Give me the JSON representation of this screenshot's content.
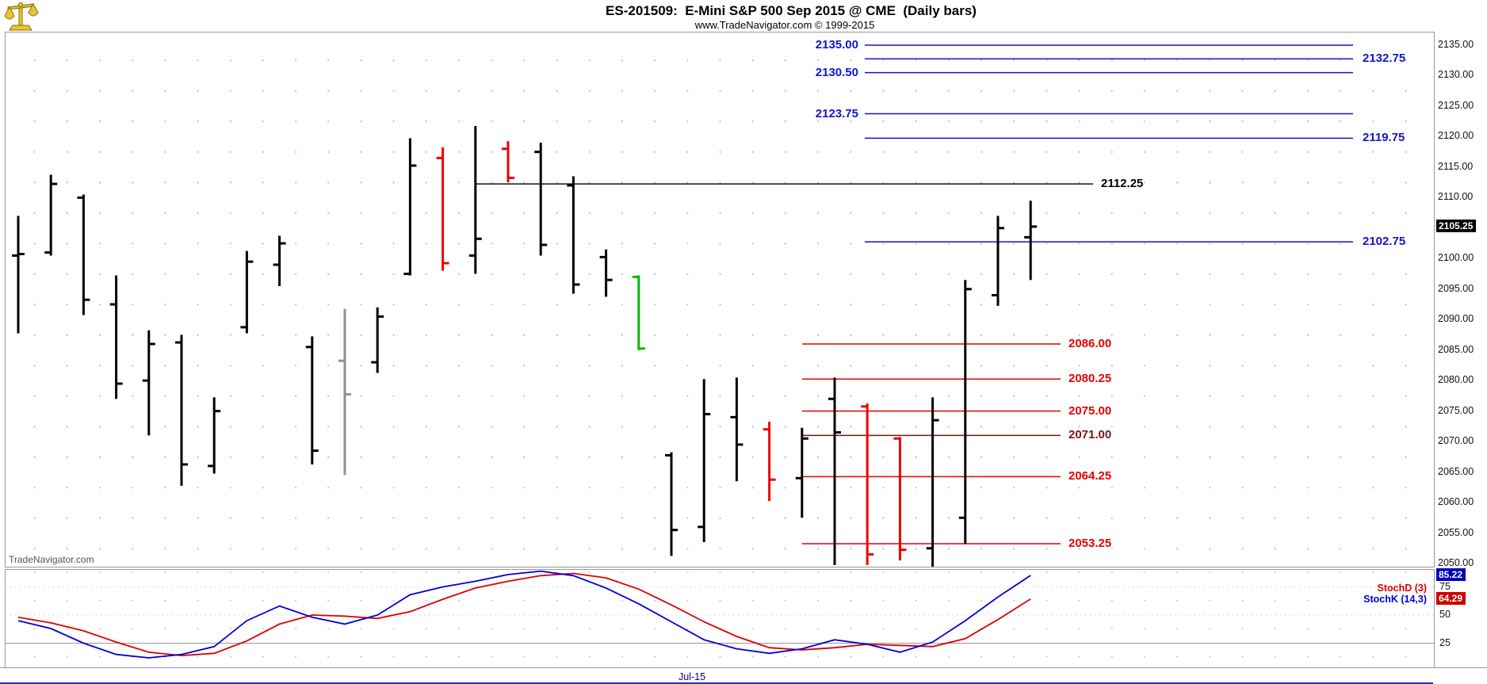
{
  "header": {
    "title": "ES-201509:  E-Mini S&P 500 Sep 2015 @ CME  (Daily bars)",
    "subtitle": "www.TradeNavigator.com © 1999-2015",
    "logo": "trade-navigator-scales-logo"
  },
  "watermark": "TradeNavigator.com",
  "time_axis": {
    "label": "Jul-15"
  },
  "price_axis": {
    "tick_labels": [
      "2135.00",
      "2130.00",
      "2125.00",
      "2120.00",
      "2115.00",
      "2110.00",
      "2100.00",
      "2095.00",
      "2090.00",
      "2085.00",
      "2080.00",
      "2075.00",
      "2070.00",
      "2065.00",
      "2060.00",
      "2055.00",
      "2050.00"
    ],
    "current_price_label": "2105.25",
    "current_price": 2105.25
  },
  "indicator_panel": {
    "stochd_label": "StochD (3)",
    "stochk_label": "StochK (14,3)",
    "tick_labels": [
      "75",
      "50",
      "25"
    ],
    "k_badge": "85.22",
    "d_badge": "64.29"
  },
  "colors": {
    "blue_level": "#1414CC",
    "red_level": "#E60000",
    "dark_red_level": "#7A1414",
    "black_level": "#000000",
    "bar_black": "#000000",
    "bar_red": "#EE0000",
    "bar_green": "#00BB00",
    "bar_gray": "#909090",
    "stoch_k": "#0000DD",
    "stoch_d": "#DD0000"
  },
  "chart_data": {
    "type": "bar",
    "subtype": "ohlc-daily-bars",
    "title": "ES-201509:  E-Mini S&P 500 Sep 2015 @ CME  (Daily bars)",
    "ylim": [
      2050,
      2135
    ],
    "visible_time_label": "Jul-15",
    "bars": [
      {
        "o": 2100.5,
        "h": 2107.0,
        "l": 2087.75,
        "c": 2100.75,
        "color": "black"
      },
      {
        "o": 2101.0,
        "h": 2113.75,
        "l": 2100.5,
        "c": 2112.25,
        "color": "black"
      },
      {
        "o": 2110.0,
        "h": 2110.5,
        "l": 2090.75,
        "c": 2093.25,
        "color": "black"
      },
      {
        "o": 2092.5,
        "h": 2097.25,
        "l": 2077.0,
        "c": 2079.5,
        "color": "black"
      },
      {
        "o": 2080.0,
        "h": 2088.25,
        "l": 2071.0,
        "c": 2086.0,
        "color": "black"
      },
      {
        "o": 2086.25,
        "h": 2087.5,
        "l": 2062.75,
        "c": 2066.25,
        "color": "black"
      },
      {
        "o": 2066.0,
        "h": 2077.25,
        "l": 2064.75,
        "c": 2075.0,
        "color": "black"
      },
      {
        "o": 2088.75,
        "h": 2101.25,
        "l": 2087.75,
        "c": 2099.5,
        "color": "black"
      },
      {
        "o": 2099.0,
        "h": 2103.75,
        "l": 2095.5,
        "c": 2102.5,
        "color": "black"
      },
      {
        "o": 2085.5,
        "h": 2087.25,
        "l": 2066.25,
        "c": 2068.5,
        "color": "black"
      },
      {
        "o": 2083.25,
        "h": 2091.75,
        "l": 2064.5,
        "c": 2077.75,
        "color": "gray"
      },
      {
        "o": 2083.0,
        "h": 2092.0,
        "l": 2081.25,
        "c": 2090.5,
        "color": "black"
      },
      {
        "o": 2097.5,
        "h": 2119.75,
        "l": 2097.25,
        "c": 2115.25,
        "color": "black"
      },
      {
        "o": 2116.5,
        "h": 2118.25,
        "l": 2098.0,
        "c": 2099.25,
        "color": "red"
      },
      {
        "o": 2100.5,
        "h": 2121.75,
        "l": 2097.5,
        "c": 2103.25,
        "color": "black"
      },
      {
        "o": 2118.0,
        "h": 2119.25,
        "l": 2112.5,
        "c": 2113.25,
        "color": "red"
      },
      {
        "o": 2117.5,
        "h": 2119.0,
        "l": 2100.5,
        "c": 2102.25,
        "color": "black"
      },
      {
        "o": 2112.0,
        "h": 2113.5,
        "l": 2094.25,
        "c": 2095.75,
        "color": "black"
      },
      {
        "o": 2100.25,
        "h": 2101.5,
        "l": 2093.75,
        "c": 2096.5,
        "color": "black"
      },
      {
        "o": 2097.0,
        "h": 2097.25,
        "l": 2085.0,
        "c": 2085.25,
        "color": "green"
      },
      {
        "o": 2067.75,
        "h": 2068.25,
        "l": 2051.25,
        "c": 2055.5,
        "color": "black"
      },
      {
        "o": 2056.0,
        "h": 2080.25,
        "l": 2053.5,
        "c": 2074.5,
        "color": "black"
      },
      {
        "o": 2074.0,
        "h": 2080.5,
        "l": 2063.5,
        "c": 2069.5,
        "color": "black"
      },
      {
        "o": 2072.0,
        "h": 2073.25,
        "l": 2060.25,
        "c": 2063.75,
        "color": "red"
      },
      {
        "o": 2064.0,
        "h": 2072.25,
        "l": 2057.5,
        "c": 2070.5,
        "color": "black"
      },
      {
        "o": 2077.0,
        "h": 2080.5,
        "l": 2049.75,
        "c": 2071.5,
        "color": "black"
      },
      {
        "o": 2075.75,
        "h": 2076.25,
        "l": 2049.75,
        "c": 2051.5,
        "color": "red"
      },
      {
        "o": 2070.5,
        "h": 2070.75,
        "l": 2050.5,
        "c": 2052.25,
        "color": "red"
      },
      {
        "o": 2052.5,
        "h": 2077.25,
        "l": 2049.5,
        "c": 2073.5,
        "color": "black"
      },
      {
        "o": 2057.5,
        "h": 2096.5,
        "l": 2053.25,
        "c": 2095.0,
        "color": "black"
      },
      {
        "o": 2094.0,
        "h": 2107.0,
        "l": 2092.25,
        "c": 2105.0,
        "color": "black"
      },
      {
        "o": 2103.5,
        "h": 2109.5,
        "l": 2096.5,
        "c": 2105.25,
        "color": "black"
      }
    ],
    "levels": {
      "blue": [
        {
          "price": 2135.0,
          "label": "2135.00",
          "label_side": "left"
        },
        {
          "price": 2132.75,
          "label": "2132.75",
          "label_side": "right"
        },
        {
          "price": 2130.5,
          "label": "2130.50",
          "label_side": "left"
        },
        {
          "price": 2123.75,
          "label": "2123.75",
          "label_side": "left"
        },
        {
          "price": 2119.75,
          "label": "2119.75",
          "label_side": "right"
        },
        {
          "price": 2102.75,
          "label": "2102.75",
          "label_side": "right"
        }
      ],
      "black": [
        {
          "price": 2112.25,
          "label": "2112.25"
        }
      ],
      "red": [
        {
          "price": 2086.0,
          "label": "2086.00",
          "shade": "bright"
        },
        {
          "price": 2080.25,
          "label": "2080.25",
          "shade": "bright"
        },
        {
          "price": 2075.0,
          "label": "2075.00",
          "shade": "bright"
        },
        {
          "price": 2071.0,
          "label": "2071.00",
          "shade": "dark"
        },
        {
          "price": 2064.25,
          "label": "2064.25",
          "shade": "bright"
        },
        {
          "price": 2053.25,
          "label": "2053.25",
          "shade": "bright"
        }
      ]
    },
    "stochastic": {
      "ylim": [
        0,
        100
      ],
      "grid_values": [
        75,
        50,
        25
      ],
      "k_name": "StochK (14,3)",
      "d_name": "StochD (3)",
      "k": [
        45,
        38,
        25,
        15,
        12,
        15,
        22,
        45,
        58,
        48,
        42,
        50,
        68,
        75,
        80,
        86,
        89,
        85,
        74,
        60,
        44,
        28,
        20,
        16,
        20,
        28,
        24,
        17,
        26,
        45,
        66,
        85.22
      ],
      "d": [
        48,
        43,
        36,
        26,
        17,
        14,
        16,
        27,
        42,
        50,
        49,
        47,
        53,
        64,
        74,
        80,
        85,
        87,
        83,
        73,
        59,
        44,
        31,
        21,
        19,
        21,
        24,
        23,
        22,
        29,
        46,
        64.29
      ],
      "k_last": 85.22,
      "d_last": 64.29
    }
  }
}
